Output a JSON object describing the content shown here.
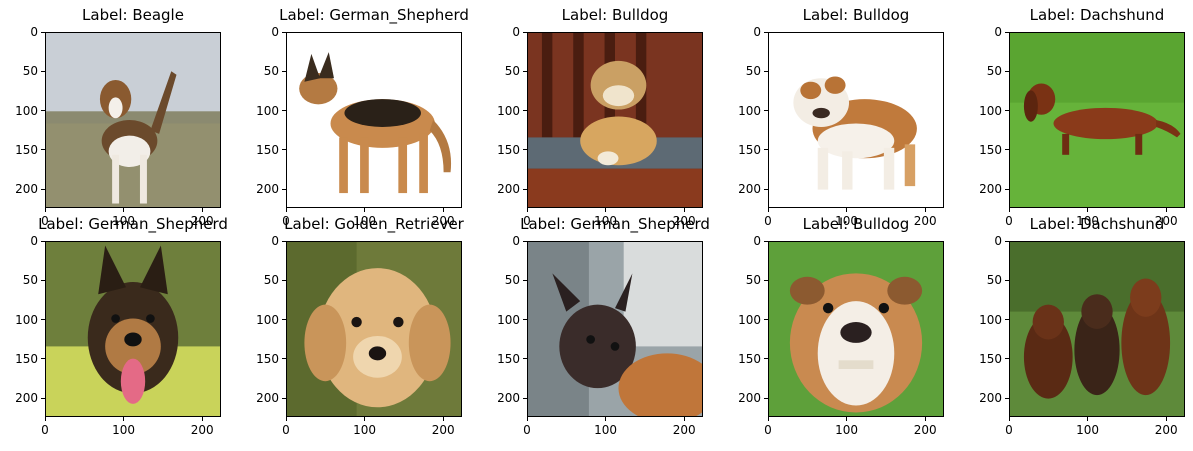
{
  "chart_data": {
    "type": "image-grid",
    "rows": 2,
    "cols": 5,
    "x_ticks": [
      0,
      100,
      200
    ],
    "y_ticks": [
      0,
      50,
      100,
      150,
      200
    ],
    "xlim": [
      0,
      224
    ],
    "ylim": [
      224,
      0
    ],
    "panels": [
      {
        "title": "Label: Beagle",
        "scene": "beagle-field"
      },
      {
        "title": "Label: German_Shepherd",
        "scene": "shepherd-white"
      },
      {
        "title": "Label: Bulldog",
        "scene": "bulldog-sofa"
      },
      {
        "title": "Label: Bulldog",
        "scene": "bulldog-white"
      },
      {
        "title": "Label: Dachshund",
        "scene": "dachshund-grass"
      },
      {
        "title": "Label: German_Shepherd",
        "scene": "shepherd-face"
      },
      {
        "title": "Label: Golden_Retriever",
        "scene": "golden-puppy"
      },
      {
        "title": "Label: German_Shepherd",
        "scene": "dark-dog-room"
      },
      {
        "title": "Label: Bulldog",
        "scene": "bulldog-face"
      },
      {
        "title": "Label: Dachshund",
        "scene": "three-dachshunds"
      }
    ]
  }
}
